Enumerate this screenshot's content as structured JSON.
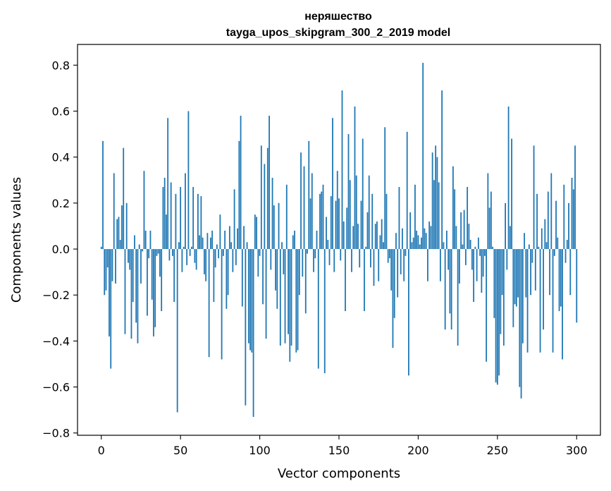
{
  "chart_data": {
    "type": "bar",
    "title": "неряшество",
    "subtitle": "tayga_upos_skipgram_300_2_2019 model",
    "xlabel": "Vector components",
    "ylabel": "Components values",
    "xlim": [
      -15,
      315
    ],
    "ylim": [
      -0.81,
      0.89
    ],
    "xticks": [
      0,
      50,
      100,
      150,
      200,
      250,
      300
    ],
    "yticks": [
      -0.8,
      -0.6,
      -0.4,
      -0.2,
      0.0,
      0.2,
      0.4,
      0.6,
      0.8
    ],
    "ytick_labels": [
      "−0.8",
      "−0.6",
      "−0.4",
      "−0.2",
      "0.0",
      "0.2",
      "0.4",
      "0.6",
      "0.8"
    ],
    "grid": false,
    "bar_color": "#1f77b4",
    "values": [
      0.01,
      0.47,
      -0.2,
      -0.18,
      -0.08,
      -0.38,
      -0.52,
      -0.14,
      0.33,
      -0.15,
      0.13,
      0.14,
      0.04,
      0.19,
      0.44,
      -0.37,
      0.2,
      -0.06,
      -0.09,
      -0.39,
      -0.23,
      0.06,
      -0.32,
      -0.41,
      0.02,
      -0.15,
      -0.01,
      0.34,
      0.08,
      -0.29,
      -0.04,
      0.08,
      -0.22,
      -0.38,
      -0.34,
      -0.03,
      -0.02,
      -0.12,
      -0.27,
      0.27,
      0.31,
      0.15,
      0.57,
      -0.05,
      0.29,
      -0.03,
      -0.23,
      0.24,
      -0.71,
      0.03,
      0.27,
      -0.1,
      0.01,
      0.33,
      -0.07,
      0.6,
      -0.03,
      0.01,
      0.27,
      -0.06,
      -0.09,
      0.24,
      0.06,
      0.23,
      0.05,
      -0.11,
      -0.14,
      0.07,
      -0.47,
      0.05,
      0.08,
      -0.23,
      -0.08,
      0.02,
      -0.04,
      0.15,
      -0.48,
      -0.03,
      0.08,
      -0.26,
      -0.2,
      0.1,
      0.03,
      -0.1,
      0.26,
      -0.07,
      0.09,
      0.47,
      0.58,
      -0.25,
      0.1,
      -0.68,
      0.03,
      -0.41,
      -0.44,
      -0.45,
      -0.73,
      0.15,
      0.14,
      -0.12,
      -0.03,
      0.45,
      -0.24,
      0.37,
      -0.39,
      0.44,
      0.58,
      -0.09,
      0.31,
      0.19,
      -0.18,
      -0.26,
      0.2,
      -0.42,
      0.03,
      -0.11,
      -0.41,
      0.28,
      -0.37,
      -0.49,
      -0.42,
      0.06,
      0.08,
      -0.45,
      -0.44,
      -0.2,
      0.42,
      -0.12,
      0.36,
      -0.28,
      -0.02,
      0.47,
      0.22,
      0.33,
      -0.1,
      -0.04,
      0.08,
      -0.52,
      0.24,
      0.25,
      0.28,
      -0.54,
      0.14,
      0.04,
      -0.07,
      0.23,
      0.57,
      -0.1,
      0.21,
      0.34,
      0.22,
      -0.05,
      0.69,
      0.12,
      -0.27,
      0.18,
      0.5,
      0.3,
      -0.1,
      0.1,
      0.62,
      0.32,
      0.11,
      -0.08,
      0.21,
      0.48,
      -0.27,
      0.01,
      0.16,
      0.32,
      -0.08,
      0.24,
      -0.16,
      0.11,
      0.12,
      -0.14,
      0.06,
      0.13,
      0.03,
      0.53,
      0.24,
      -0.06,
      -0.04,
      -0.18,
      -0.43,
      -0.3,
      0.07,
      -0.21,
      0.27,
      -0.11,
      0.09,
      -0.14,
      -0.03,
      0.51,
      -0.55,
      0.16,
      0.03,
      0.05,
      0.28,
      0.08,
      0.06,
      0.02,
      0.05,
      0.81,
      0.09,
      0.07,
      -0.14,
      0.12,
      0.1,
      0.42,
      0.3,
      0.45,
      0.4,
      0.29,
      -0.14,
      0.69,
      0.03,
      -0.35,
      0.08,
      -0.09,
      -0.28,
      -0.35,
      0.36,
      0.26,
      0.1,
      -0.42,
      -0.15,
      0.16,
      0.02,
      0.17,
      -0.07,
      0.27,
      0.11,
      0.04,
      -0.09,
      -0.23,
      0.01,
      -0.14,
      0.05,
      -0.03,
      -0.19,
      -0.12,
      -0.03,
      -0.49,
      0.33,
      0.18,
      0.25,
      0.01,
      -0.3,
      -0.58,
      -0.59,
      -0.55,
      -0.37,
      -0.2,
      -0.42,
      0.2,
      -0.09,
      0.62,
      0.1,
      0.48,
      -0.34,
      -0.24,
      -0.25,
      -0.21,
      -0.6,
      -0.65,
      -0.41,
      0.07,
      -0.21,
      -0.45,
      0.02,
      -0.2,
      -0.06,
      0.45,
      -0.18,
      0.24,
      0.01,
      -0.45,
      0.09,
      -0.35,
      0.13,
      0.03,
      0.25,
      -0.2,
      0.33,
      -0.45,
      -0.03,
      0.21,
      0.05,
      -0.27,
      -0.25,
      -0.48,
      0.28,
      -0.06,
      0.04,
      0.2,
      -0.2,
      0.31,
      0.26,
      0.45,
      -0.32
    ]
  }
}
